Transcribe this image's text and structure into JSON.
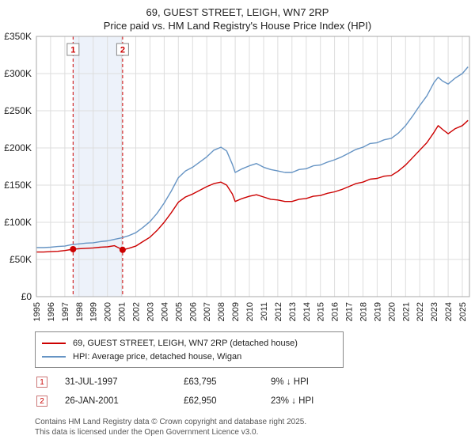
{
  "title": {
    "line1": "69, GUEST STREET, LEIGH, WN7 2RP",
    "line2": "Price paid vs. HM Land Registry's House Price Index (HPI)"
  },
  "chart_data": {
    "type": "line",
    "title": "69, GUEST STREET, LEIGH, WN7 2RP — Price paid vs. HM Land Registry's House Price Index (HPI)",
    "xlim": [
      1995,
      2025.5
    ],
    "ylim": [
      0,
      350
    ],
    "y_unit": "GBP thousands",
    "grid": true,
    "legend_position": "bottom",
    "y_ticks": [
      {
        "v": 0,
        "label": "£0"
      },
      {
        "v": 50,
        "label": "£50K"
      },
      {
        "v": 100,
        "label": "£100K"
      },
      {
        "v": 150,
        "label": "£150K"
      },
      {
        "v": 200,
        "label": "£200K"
      },
      {
        "v": 250,
        "label": "£250K"
      },
      {
        "v": 300,
        "label": "£300K"
      },
      {
        "v": 350,
        "label": "£350K"
      }
    ],
    "x_ticks": [
      1995,
      1996,
      1997,
      1998,
      1999,
      2000,
      2001,
      2002,
      2003,
      2004,
      2005,
      2006,
      2007,
      2008,
      2009,
      2010,
      2011,
      2012,
      2013,
      2014,
      2015,
      2016,
      2017,
      2018,
      2019,
      2020,
      2021,
      2022,
      2023,
      2024,
      2025
    ],
    "band": {
      "from": 1997.58,
      "to": 2001.07,
      "color": "#edf2fa"
    },
    "sale_marker_color": "#cc0000",
    "sales": [
      {
        "num": "1",
        "x": 1997.58,
        "y": 63.795
      },
      {
        "num": "2",
        "x": 2001.07,
        "y": 62.95
      }
    ],
    "series": [
      {
        "name": "69, GUEST STREET, LEIGH, WN7 2RP (detached house)",
        "color": "#cc0000",
        "points": [
          [
            1995,
            60
          ],
          [
            1995.5,
            60
          ],
          [
            1996,
            60.5
          ],
          [
            1996.5,
            61
          ],
          [
            1997,
            62
          ],
          [
            1997.58,
            63.8
          ],
          [
            1998,
            64.5
          ],
          [
            1998.5,
            65
          ],
          [
            1999,
            65.5
          ],
          [
            1999.5,
            66.5
          ],
          [
            2000,
            67
          ],
          [
            2000.5,
            68.5
          ],
          [
            2001.07,
            63
          ],
          [
            2001.5,
            65
          ],
          [
            2002,
            68
          ],
          [
            2002.5,
            74
          ],
          [
            2003,
            80
          ],
          [
            2003.5,
            89
          ],
          [
            2004,
            100
          ],
          [
            2004.5,
            113
          ],
          [
            2005,
            127
          ],
          [
            2005.5,
            134
          ],
          [
            2006,
            138
          ],
          [
            2006.5,
            143
          ],
          [
            2007,
            148
          ],
          [
            2007.5,
            152
          ],
          [
            2008,
            154
          ],
          [
            2008.4,
            150
          ],
          [
            2008.8,
            138
          ],
          [
            2009,
            128
          ],
          [
            2009.5,
            132
          ],
          [
            2010,
            135
          ],
          [
            2010.5,
            137
          ],
          [
            2011,
            134
          ],
          [
            2011.5,
            131
          ],
          [
            2012,
            130
          ],
          [
            2012.5,
            128
          ],
          [
            2013,
            128
          ],
          [
            2013.5,
            131
          ],
          [
            2014,
            132
          ],
          [
            2014.5,
            135
          ],
          [
            2015,
            136
          ],
          [
            2015.5,
            139
          ],
          [
            2016,
            141
          ],
          [
            2016.5,
            144
          ],
          [
            2017,
            148
          ],
          [
            2017.5,
            152
          ],
          [
            2018,
            154
          ],
          [
            2018.5,
            158
          ],
          [
            2019,
            159
          ],
          [
            2019.5,
            162
          ],
          [
            2020,
            163
          ],
          [
            2020.5,
            169
          ],
          [
            2021,
            177
          ],
          [
            2021.5,
            187
          ],
          [
            2022,
            197
          ],
          [
            2022.5,
            207
          ],
          [
            2023,
            221
          ],
          [
            2023.3,
            230
          ],
          [
            2023.6,
            225
          ],
          [
            2024,
            219
          ],
          [
            2024.5,
            226
          ],
          [
            2025,
            230
          ],
          [
            2025.4,
            237
          ]
        ]
      },
      {
        "name": "HPI: Average price, detached house, Wigan",
        "color": "#6694c4",
        "points": [
          [
            1995,
            66
          ],
          [
            1995.5,
            66
          ],
          [
            1996,
            66.5
          ],
          [
            1996.5,
            67.5
          ],
          [
            1997,
            68
          ],
          [
            1997.5,
            70
          ],
          [
            1998,
            71
          ],
          [
            1998.5,
            72
          ],
          [
            1999,
            72.5
          ],
          [
            1999.5,
            74
          ],
          [
            2000,
            75
          ],
          [
            2000.5,
            77
          ],
          [
            2001,
            79
          ],
          [
            2001.5,
            82
          ],
          [
            2002,
            86
          ],
          [
            2002.5,
            93
          ],
          [
            2003,
            101
          ],
          [
            2003.5,
            112
          ],
          [
            2004,
            126
          ],
          [
            2004.5,
            142
          ],
          [
            2005,
            160
          ],
          [
            2005.5,
            169
          ],
          [
            2006,
            174
          ],
          [
            2006.5,
            181
          ],
          [
            2007,
            188
          ],
          [
            2007.5,
            197
          ],
          [
            2008,
            201
          ],
          [
            2008.4,
            196
          ],
          [
            2008.8,
            178
          ],
          [
            2009,
            167
          ],
          [
            2009.5,
            172
          ],
          [
            2010,
            176
          ],
          [
            2010.5,
            179
          ],
          [
            2011,
            174
          ],
          [
            2011.5,
            171
          ],
          [
            2012,
            169
          ],
          [
            2012.5,
            167
          ],
          [
            2013,
            167
          ],
          [
            2013.5,
            171
          ],
          [
            2014,
            172
          ],
          [
            2014.5,
            176
          ],
          [
            2015,
            177
          ],
          [
            2015.5,
            181
          ],
          [
            2016,
            184
          ],
          [
            2016.5,
            188
          ],
          [
            2017,
            193
          ],
          [
            2017.5,
            198
          ],
          [
            2018,
            201
          ],
          [
            2018.5,
            206
          ],
          [
            2019,
            207
          ],
          [
            2019.5,
            211
          ],
          [
            2020,
            213
          ],
          [
            2020.5,
            220
          ],
          [
            2021,
            230
          ],
          [
            2021.5,
            243
          ],
          [
            2022,
            257
          ],
          [
            2022.5,
            270
          ],
          [
            2023,
            288
          ],
          [
            2023.3,
            295
          ],
          [
            2023.6,
            290
          ],
          [
            2024,
            286
          ],
          [
            2024.5,
            294
          ],
          [
            2025,
            300
          ],
          [
            2025.4,
            309
          ]
        ]
      }
    ]
  },
  "annotations": [
    {
      "num": "1",
      "date": "31-JUL-1997",
      "price": "£63,795",
      "hpi": "9% ↓ HPI"
    },
    {
      "num": "2",
      "date": "26-JAN-2001",
      "price": "£62,950",
      "hpi": "23% ↓ HPI"
    }
  ],
  "footer": {
    "line1": "Contains HM Land Registry data © Crown copyright and database right 2025.",
    "line2": "This data is licensed under the Open Government Licence v3.0."
  }
}
